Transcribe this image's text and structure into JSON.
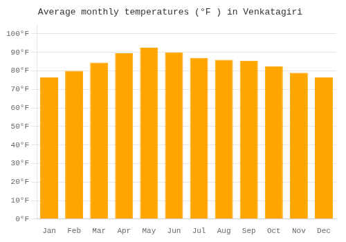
{
  "chart_data": {
    "type": "bar",
    "title": "Average monthly temperatures (°F ) in Venkatagiri",
    "categories": [
      "Jan",
      "Feb",
      "Mar",
      "Apr",
      "May",
      "Jun",
      "Jul",
      "Aug",
      "Sep",
      "Oct",
      "Nov",
      "Dec"
    ],
    "values": [
      76.5,
      80.0,
      84.5,
      89.5,
      92.5,
      90.0,
      87.0,
      86.0,
      85.5,
      82.5,
      79.0,
      76.5
    ],
    "color": "#FFA500",
    "ylim": [
      0,
      105
    ],
    "yticks": [
      {
        "value": 0,
        "label": "0°F"
      },
      {
        "value": 10,
        "label": "10°F"
      },
      {
        "value": 20,
        "label": "20°F"
      },
      {
        "value": 30,
        "label": "30°F"
      },
      {
        "value": 40,
        "label": "40°F"
      },
      {
        "value": 50,
        "label": "50°F"
      },
      {
        "value": 60,
        "label": "60°F"
      },
      {
        "value": 70,
        "label": "70°F"
      },
      {
        "value": 80,
        "label": "80°F"
      },
      {
        "value": 90,
        "label": "90°F"
      },
      {
        "value": 100,
        "label": "100°F"
      }
    ],
    "grid": true
  }
}
